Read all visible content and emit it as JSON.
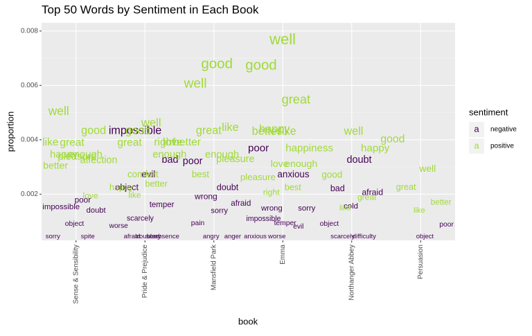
{
  "chart_data": {
    "type": "text-scatter",
    "title": "Top 50 Words by Sentiment in Each Book",
    "x_label": "book",
    "y_label": "proportion",
    "legend_title": "sentiment",
    "legend_glyph": "a",
    "categories": [
      "Sense & Sensibility",
      "Pride & Prejudice",
      "Mansfield Park",
      "Emma",
      "Northanger Abbey",
      "Persuasion"
    ],
    "ylim": [
      0.0003,
      0.0083
    ],
    "yticks": [
      0.002,
      0.004,
      0.006,
      0.008
    ],
    "grid": true,
    "series": [
      {
        "name": "negative",
        "color": "#440154",
        "words": [
          [
            "poor",
            "impossible",
            "doubt",
            "object",
            "sorry",
            "spite"
          ],
          [
            "impossible",
            "bad",
            "evil",
            "object",
            "temper",
            "scarcely",
            "worse",
            "sorry",
            "afraid",
            "absence",
            "trouble"
          ],
          [
            "poor",
            "doubt",
            "wrong",
            "afraid",
            "sorry",
            "pain",
            "anger",
            "angry"
          ],
          [
            "poor",
            "anxious",
            "wrong",
            "sorry",
            "temper",
            "impossible",
            "evil",
            "worse",
            "anxious"
          ],
          [
            "doubt",
            "bad",
            "afraid",
            "cold",
            "object",
            "difficulty",
            "scarcely"
          ],
          [
            "poor",
            "object"
          ]
        ],
        "values": [
          [
            0.00177,
            0.00152,
            0.0014,
            0.0009,
            0.00044,
            0.00044
          ],
          [
            0.00432,
            0.00325,
            0.00271,
            0.00223,
            0.0016,
            0.0011,
            0.00083,
            0.00044,
            0.00044,
            0.00044,
            0.00044
          ],
          [
            0.0032,
            0.00223,
            0.0019,
            0.00165,
            0.00138,
            0.00093,
            0.00044,
            0.00044
          ],
          [
            0.00368,
            0.00271,
            0.00147,
            0.00147,
            0.00093,
            0.00108,
            0.0008,
            0.00044,
            0.00044
          ],
          [
            0.00325,
            0.00219,
            0.00205,
            0.00155,
            0.0009,
            0.00044,
            0.00044
          ],
          [
            0.00088,
            0.00044
          ]
        ]
      },
      {
        "name": "positive",
        "color": "#a0da39",
        "words": [
          [
            "well",
            "good",
            "great",
            "like",
            "enough",
            "happy",
            "affection",
            "pleasure",
            "better",
            "love"
          ],
          [
            "good",
            "love",
            "well",
            "great",
            "right",
            "comfort",
            "happy",
            "better",
            "like",
            "enough"
          ],
          [
            "good",
            "well",
            "like",
            "great",
            "better",
            "enough",
            "best",
            "pleasure"
          ],
          [
            "well",
            "good",
            "great",
            "happy",
            "happiness",
            "like",
            "better",
            "enough",
            "love",
            "pleasure",
            "best",
            "right"
          ],
          [
            "happy",
            "well",
            "good",
            "great",
            "like"
          ],
          [
            "good",
            "well",
            "great",
            "better",
            "like"
          ]
        ],
        "values": [
          [
            0.00503,
            0.00432,
            0.00388,
            0.0039,
            0.00345,
            0.00345,
            0.00324,
            0.00337,
            0.00303,
            0.00192
          ],
          [
            0.00432,
            0.0039,
            0.0046,
            0.00388,
            0.0039,
            0.00271,
            0.00223,
            0.00236,
            0.00195,
            0.00345
          ],
          [
            0.00677,
            0.00605,
            0.00443,
            0.00432,
            0.0039,
            0.00345,
            0.00271,
            0.00327
          ],
          [
            0.00766,
            0.00672,
            0.00545,
            0.00437,
            0.00368,
            0.0043,
            0.0043,
            0.0031,
            0.0031,
            0.00261,
            0.00223,
            0.00205
          ],
          [
            0.00368,
            0.0043,
            0.00269,
            0.00187,
            0.00149
          ],
          [
            0.00401,
            0.00292,
            0.00225,
            0.00169,
            0.0014
          ]
        ]
      }
    ]
  }
}
